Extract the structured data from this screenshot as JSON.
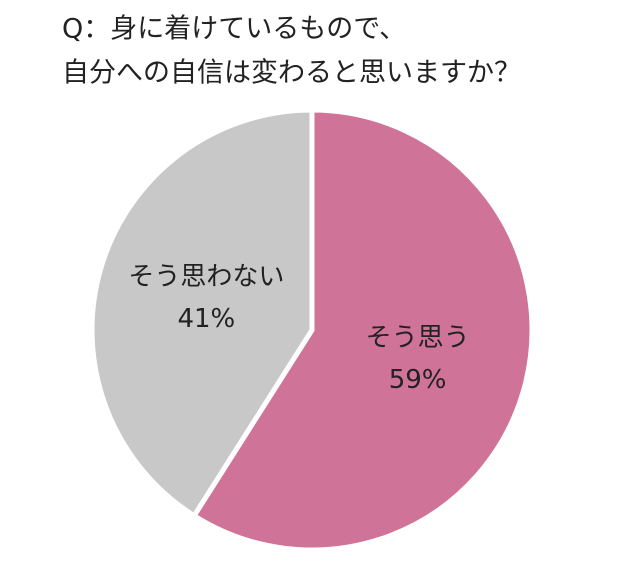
{
  "chart_data": {
    "type": "pie",
    "title": [
      "Q：身に着けているもので、",
      "自分への自信は変わると思いますか？"
    ],
    "categories": [
      "そう思う",
      "そう思わない"
    ],
    "values": [
      59,
      41
    ],
    "value_labels": [
      "59%",
      "41%"
    ],
    "colors": [
      "#d07399",
      "#c8c8c8"
    ]
  }
}
